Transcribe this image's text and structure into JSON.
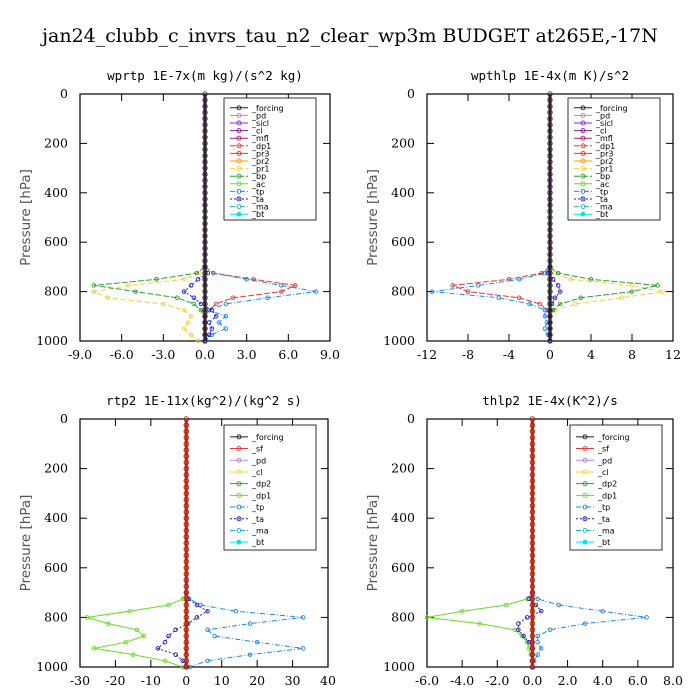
{
  "title": "jan24_clubb_c_invrs_tau_n2_clear_wp3m  BUDGET at265E,-17N",
  "colors": {
    "forcing": "#222222",
    "pd": "#b08ae0",
    "sicl": "#8a2be2",
    "cl": "#7b1fa2",
    "mfl": "#c2185b",
    "dp1": "#e53935",
    "pr3": "#ff2a2a",
    "pr2": "#ff9800",
    "pr1": "#f4d03f",
    "bp": "#2e9e2e",
    "ac": "#66dd22",
    "tp": "#1e88e5",
    "ta": "#1a1acd",
    "ma": "#26b5c6",
    "bt": "#00e5ee",
    "sf": "#e53935",
    "cl_b": "#f4d03f",
    "dp2": "#2e9e2e",
    "dp1_b": "#66dd22",
    "thick": "#cc3300"
  },
  "chart_data": [
    {
      "type": "line",
      "panel_title": "wprtp  1E-7x(m kg)/(s^2 kg)",
      "ylabel": "Pressure [hPa]",
      "xlim": [
        -9,
        9
      ],
      "ylim": [
        0,
        1000
      ],
      "y_inverted": true,
      "xticks": [
        "-9.0",
        "-6.0",
        "-3.0",
        "0.0",
        "3.0",
        "6.0",
        "9.0"
      ],
      "yticks": [
        "0",
        "200",
        "400",
        "600",
        "800",
        "1000"
      ],
      "pressure": [
        700,
        725,
        750,
        775,
        800,
        825,
        850,
        875,
        900,
        925,
        950,
        975,
        1000
      ],
      "legend": [
        "_forcing",
        "_pd",
        "_sicl",
        "_cl",
        "_mfl",
        "_dp1",
        "_pr3",
        "_pr2",
        "_pr1",
        "_bp",
        "_ac",
        "_tp",
        "_ta",
        "_ma",
        "_bt"
      ],
      "series": [
        {
          "key": "pr1",
          "values": [
            0,
            -0.4,
            -1.5,
            -5.5,
            -8.0,
            -7.0,
            -3.0,
            -1.5,
            -1.0,
            -1.2,
            -1.5,
            -1.0,
            -0.5
          ]
        },
        {
          "key": "bp",
          "values": [
            0,
            -0.6,
            -3.5,
            -8.0,
            -5.0,
            -2.0,
            -0.8,
            -0.3,
            0,
            0,
            0,
            0,
            0
          ]
        },
        {
          "key": "dp1",
          "values": [
            0,
            0.6,
            3.5,
            6.5,
            5.5,
            2.0,
            0.8,
            0.3,
            0,
            0,
            0,
            0,
            0
          ]
        },
        {
          "key": "tp",
          "values": [
            0,
            0.6,
            3.0,
            5.5,
            8.0,
            4.5,
            1.5,
            0.3,
            1.5,
            1.0,
            1.5,
            0.5,
            0
          ]
        },
        {
          "key": "ta",
          "values": [
            0,
            0.2,
            -0.5,
            -1.0,
            -1.5,
            -0.8,
            -0.3,
            0.5,
            0.8,
            0.3,
            0.5,
            0.3,
            0
          ]
        },
        {
          "key": "forcing",
          "values": [
            0,
            0,
            0,
            0,
            0,
            0,
            0,
            0,
            0,
            0,
            0,
            0,
            0
          ]
        }
      ]
    },
    {
      "type": "line",
      "panel_title": "wpthlp  1E-4x(m K)/s^2",
      "ylabel": "Pressure [hPa]",
      "xlim": [
        -12,
        12
      ],
      "ylim": [
        0,
        1000
      ],
      "y_inverted": true,
      "xticks": [
        "-12",
        "-8",
        "-4",
        "0",
        "4",
        "8",
        "12"
      ],
      "yticks": [
        "0",
        "200",
        "400",
        "600",
        "800",
        "1000"
      ],
      "pressure": [
        700,
        725,
        750,
        775,
        800,
        825,
        850,
        875,
        900,
        925,
        950,
        975,
        1000
      ],
      "legend": [
        "_forcing",
        "_pd",
        "_sicl",
        "_cl",
        "_mfl",
        "_dp1",
        "_pr3",
        "_pr2",
        "_pr1",
        "_bp",
        "_ac",
        "_tp",
        "_ta",
        "_ma",
        "_bt"
      ],
      "series": [
        {
          "key": "pr1",
          "values": [
            0,
            0.5,
            2.0,
            8.0,
            11.0,
            7.0,
            2.5,
            0.5,
            0,
            0,
            0,
            0,
            0
          ]
        },
        {
          "key": "bp",
          "values": [
            0,
            0.8,
            4.0,
            10.5,
            8.0,
            3.0,
            1.0,
            0.3,
            0,
            0,
            0,
            0,
            0
          ]
        },
        {
          "key": "dp1",
          "values": [
            0,
            -0.8,
            -4.0,
            -9.5,
            -8.0,
            -3.0,
            -1.0,
            -0.3,
            0,
            0,
            0,
            0,
            0
          ]
        },
        {
          "key": "tp",
          "values": [
            0,
            -0.5,
            -3.0,
            -7.0,
            -11.5,
            -5.0,
            -2.0,
            -0.5,
            -0.5,
            -0.3,
            -0.5,
            -0.2,
            0
          ]
        },
        {
          "key": "ta",
          "values": [
            0,
            -0.2,
            0.3,
            0.8,
            1.0,
            0.5,
            0.2,
            0,
            0,
            0,
            0,
            0,
            0
          ]
        },
        {
          "key": "forcing",
          "values": [
            0,
            0,
            0,
            0,
            0,
            0,
            0,
            0,
            0,
            0,
            0,
            0,
            0
          ]
        }
      ]
    },
    {
      "type": "line",
      "panel_title": "rtp2  1E-11x(kg^2)/(kg^2 s)",
      "ylabel": "Pressure [hPa]",
      "xlim": [
        -30,
        40
      ],
      "ylim": [
        0,
        1000
      ],
      "y_inverted": true,
      "xticks": [
        "-30",
        "-20",
        "-10",
        "0",
        "10",
        "20",
        "30",
        "40"
      ],
      "yticks": [
        "0",
        "200",
        "400",
        "600",
        "800",
        "1000"
      ],
      "pressure": [
        700,
        725,
        750,
        775,
        800,
        825,
        850,
        875,
        900,
        925,
        950,
        975,
        1000
      ],
      "legend": [
        "_forcing",
        "_sf",
        "_pd",
        "_cl",
        "_dp2",
        "_dp1",
        "_tp",
        "_ta",
        "_ma",
        "_bt"
      ],
      "series": [
        {
          "key": "dp1_b",
          "values": [
            0,
            -1.0,
            -5.0,
            -16.0,
            -28.0,
            -22.0,
            -14.0,
            -12.0,
            -17.0,
            -26.0,
            -15.0,
            -6.0,
            -1.0
          ]
        },
        {
          "key": "tp",
          "values": [
            0,
            0.8,
            4.0,
            14.0,
            33.0,
            18.0,
            6.0,
            8.0,
            20.0,
            33.0,
            18.0,
            6.0,
            1.0
          ]
        },
        {
          "key": "ta",
          "values": [
            0,
            0.5,
            3.0,
            6.0,
            3.0,
            0.5,
            -3.0,
            -5.0,
            -6.0,
            -8.0,
            -3.0,
            -1.0,
            0
          ]
        },
        {
          "key": "forcing",
          "values": [
            0,
            0,
            0,
            0,
            0,
            0,
            0,
            0,
            0,
            0,
            0,
            0,
            0
          ]
        }
      ]
    },
    {
      "type": "line",
      "panel_title": "thlp2  1E-4x(K^2)/s",
      "ylabel": "Pressure [hPa]",
      "xlim": [
        -6,
        8
      ],
      "ylim": [
        0,
        1000
      ],
      "y_inverted": true,
      "xticks": [
        "-6.0",
        "-4.0",
        "-2.0",
        "0.0",
        "2.0",
        "4.0",
        "6.0",
        "8.0"
      ],
      "yticks": [
        "0",
        "200",
        "400",
        "600",
        "800",
        "1000"
      ],
      "pressure": [
        700,
        725,
        750,
        775,
        800,
        825,
        850,
        875,
        900,
        925,
        950,
        975,
        1000
      ],
      "legend": [
        "_forcing",
        "_sf",
        "_pd",
        "_cl",
        "_dp2",
        "_dp1",
        "_tp",
        "_ta",
        "_ma",
        "_bt"
      ],
      "series": [
        {
          "key": "dp1_b",
          "values": [
            0,
            -0.3,
            -1.5,
            -4.0,
            -6.0,
            -3.0,
            -1.0,
            -0.6,
            -0.3,
            -0.2,
            -0.1,
            0,
            0
          ]
        },
        {
          "key": "tp",
          "values": [
            0,
            0.3,
            1.5,
            4.0,
            6.5,
            3.0,
            1.0,
            0.3,
            0.3,
            0.5,
            0.3,
            0.1,
            0
          ]
        },
        {
          "key": "ta",
          "values": [
            0,
            -0.2,
            0.2,
            0.5,
            -0.3,
            -0.8,
            -0.8,
            -0.5,
            -0.2,
            0,
            0,
            0,
            0
          ]
        },
        {
          "key": "forcing",
          "values": [
            0,
            0,
            0,
            0,
            0,
            0,
            0,
            0,
            0,
            0,
            0,
            0,
            0
          ]
        }
      ]
    }
  ]
}
